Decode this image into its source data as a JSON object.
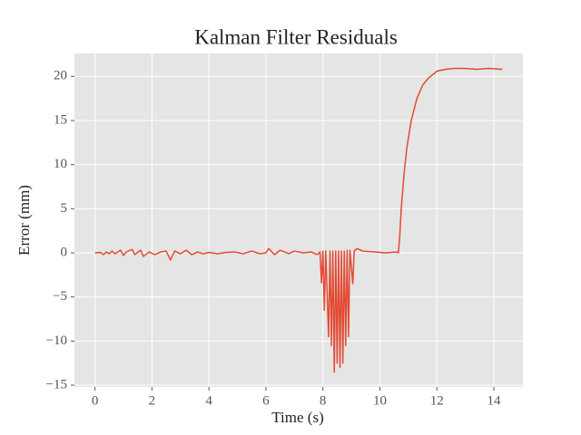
{
  "chart_data": {
    "type": "line",
    "title": "Kalman Filter Residuals",
    "x_label": "Time (s)",
    "y_label": "Error (mm)",
    "x": [
      0,
      0.2,
      0.3,
      0.4,
      0.5,
      0.6,
      0.7,
      0.9,
      1.0,
      1.1,
      1.3,
      1.4,
      1.6,
      1.7,
      1.9,
      2.1,
      2.3,
      2.5,
      2.65,
      2.8,
      3.0,
      3.2,
      3.4,
      3.6,
      3.8,
      4.0,
      4.3,
      4.6,
      4.9,
      5.2,
      5.5,
      5.8,
      6.0,
      6.1,
      6.3,
      6.5,
      6.8,
      7.0,
      7.3,
      7.6,
      7.8,
      7.9,
      7.95,
      8.0,
      8.05,
      8.1,
      8.2,
      8.25,
      8.3,
      8.35,
      8.4,
      8.45,
      8.5,
      8.55,
      8.6,
      8.65,
      8.7,
      8.75,
      8.8,
      8.85,
      8.9,
      8.95,
      9.05,
      9.1,
      9.2,
      9.4,
      9.8,
      10.2,
      10.6,
      10.65,
      10.7,
      10.75,
      10.85,
      10.95,
      11.1,
      11.3,
      11.5,
      11.7,
      11.9,
      12.0,
      12.3,
      12.6,
      13.0,
      13.4,
      13.8,
      14.3
    ],
    "values": [
      0,
      0.05,
      -0.2,
      0.1,
      -0.1,
      0.2,
      -0.1,
      0.3,
      -0.3,
      0.1,
      0.4,
      -0.2,
      0.3,
      -0.4,
      0.1,
      -0.2,
      0.1,
      0.2,
      -0.8,
      0.2,
      -0.1,
      0.3,
      -0.2,
      0.1,
      -0.1,
      0.05,
      -0.1,
      0.05,
      0.1,
      -0.1,
      0.2,
      -0.1,
      0,
      0.5,
      -0.2,
      0.3,
      -0.1,
      0.2,
      0,
      0.1,
      -0.2,
      0.1,
      -3.4,
      0.2,
      -6.5,
      0.2,
      -9.5,
      0.2,
      -10.5,
      0.2,
      -13.5,
      0.2,
      -12.5,
      0.2,
      -13,
      0.2,
      -12.5,
      0.2,
      -10.5,
      0.3,
      -9.5,
      0.3,
      -3.5,
      0.2,
      0.5,
      0.2,
      0.1,
      0,
      0.1,
      0,
      2,
      5,
      9,
      12,
      15,
      17.5,
      19,
      19.8,
      20.3,
      20.6,
      20.8,
      20.9,
      20.9,
      20.8,
      20.9,
      20.8
    ],
    "color": "#E24A33",
    "xlim": [
      -0.72,
      15.02
    ],
    "ylim": [
      -15.2,
      22.6
    ],
    "xticks": [
      0,
      2,
      4,
      6,
      8,
      10,
      12,
      14
    ],
    "yticks": [
      {
        "value": -15,
        "label": "−15"
      },
      {
        "value": -10,
        "label": "−10"
      },
      {
        "value": -5,
        "label": "−5"
      },
      0,
      5,
      10,
      15,
      20
    ],
    "grid": true
  }
}
